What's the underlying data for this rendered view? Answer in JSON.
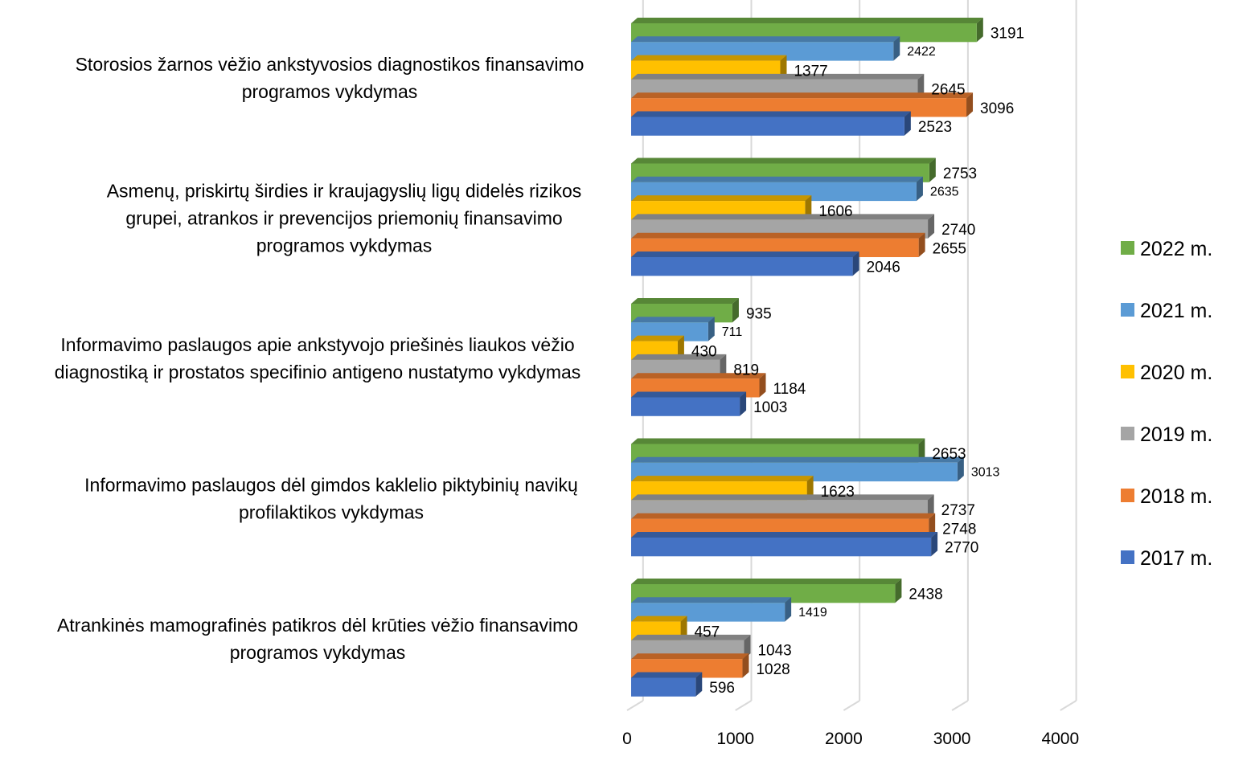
{
  "chart_data": {
    "type": "bar",
    "orientation": "horizontal",
    "style": "3d-clustered",
    "title": "",
    "xlabel": "",
    "ylabel": "",
    "xlim": [
      0,
      4000
    ],
    "x_ticks": [
      "0",
      "1000",
      "2000",
      "3000",
      "4000"
    ],
    "grid": true,
    "legend_position": "right",
    "categories": [
      {
        "lines": [
          "Storosios žarnos vėžio ankstyvosios diagnostikos finansavimo",
          "programos vykdymas"
        ]
      },
      {
        "lines": [
          "Asmenų, priskirtų širdies ir kraujagyslių ligų didelės rizikos",
          "grupei, atrankos ir prevencijos priemonių finansavimo",
          "programos vykdymas"
        ]
      },
      {
        "lines": [
          "Informavimo paslaugos apie ankstyvojo priešinės liaukos vėžio",
          "diagnostiką ir prostatos specifinio antigeno nustatymo vykdymas"
        ]
      },
      {
        "lines": [
          "Informavimo paslaugos dėl gimdos kaklelio piktybinių navikų",
          "profilaktikos vykdymas"
        ]
      },
      {
        "lines": [
          "Atrankinės mamografinės patikros dėl krūties vėžio finansavimo",
          "programos vykdymas"
        ]
      }
    ],
    "series": [
      {
        "name": "2022 m.",
        "color": "#70AD47",
        "values": [
          3191,
          2753,
          935,
          2653,
          2438
        ]
      },
      {
        "name": "2021 m.",
        "color": "#5B9BD5",
        "values": [
          2422,
          2635,
          711,
          3013,
          1419
        ]
      },
      {
        "name": "2020 m.",
        "color": "#FFC000",
        "values": [
          1377,
          1606,
          430,
          1623,
          457
        ]
      },
      {
        "name": "2019 m.",
        "color": "#A5A5A5",
        "values": [
          2645,
          2740,
          819,
          2737,
          1043
        ]
      },
      {
        "name": "2018 m.",
        "color": "#ED7D31",
        "values": [
          3096,
          2655,
          1184,
          2748,
          1028
        ]
      },
      {
        "name": "2017 m.",
        "color": "#4472C4",
        "values": [
          2523,
          2046,
          1003,
          2770,
          596
        ]
      }
    ]
  }
}
